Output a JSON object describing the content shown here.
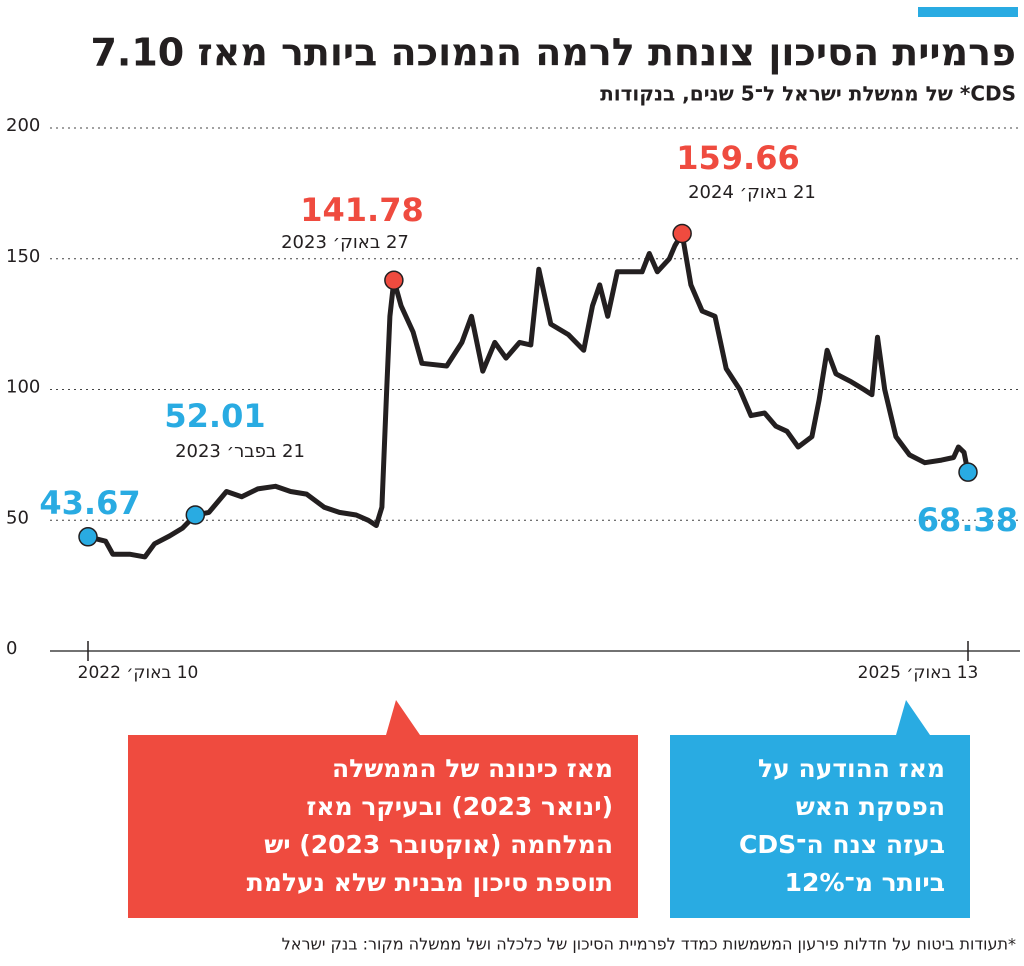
{
  "title": "פרמיית הסיכון צונחת לרמה הנמוכה ביותר מאז 7.10",
  "subtitle": "CDS* של ממשלת ישראל ל־5 שנים, בנקודות",
  "chart_data": {
    "type": "line",
    "ylim": [
      0,
      200
    ],
    "yticks": [
      0,
      50,
      100,
      150,
      200
    ],
    "xlim": [
      "2022-10-10",
      "2025-10-13"
    ],
    "xticks": [
      {
        "value": "2022-10-10",
        "label": "10 באוק׳ 2022"
      },
      {
        "value": "2025-10-13",
        "label": "13 באוק׳ 2025"
      }
    ],
    "grid": true,
    "series": [
      {
        "color": "#231f20",
        "x": [
          "2022-10-10",
          "2022-11-01",
          "2022-11-10",
          "2022-12-01",
          "2022-12-20",
          "2023-01-01",
          "2023-01-20",
          "2023-02-05",
          "2023-02-21",
          "2023-03-10",
          "2023-04-01",
          "2023-04-20",
          "2023-05-10",
          "2023-06-01",
          "2023-06-20",
          "2023-07-10",
          "2023-08-01",
          "2023-08-20",
          "2023-09-10",
          "2023-09-25",
          "2023-10-05",
          "2023-10-12",
          "2023-10-18",
          "2023-10-22",
          "2023-10-27",
          "2023-11-05",
          "2023-11-20",
          "2023-12-01",
          "2024-01-01",
          "2024-01-20",
          "2024-02-01",
          "2024-02-15",
          "2024-03-01",
          "2024-03-15",
          "2024-04-01",
          "2024-04-15",
          "2024-04-25",
          "2024-05-10",
          "2024-06-01",
          "2024-06-20",
          "2024-07-01",
          "2024-07-10",
          "2024-07-20",
          "2024-08-01",
          "2024-09-01",
          "2024-09-10",
          "2024-09-20",
          "2024-10-05",
          "2024-10-12",
          "2024-10-21",
          "2024-11-01",
          "2024-11-15",
          "2024-12-01",
          "2024-12-15",
          "2025-01-01",
          "2025-01-15",
          "2025-02-01",
          "2025-02-15",
          "2025-03-01",
          "2025-03-15",
          "2025-04-01",
          "2025-04-10",
          "2025-04-20",
          "2025-05-01",
          "2025-05-20",
          "2025-06-05",
          "2025-06-15",
          "2025-06-22",
          "2025-07-01",
          "2025-07-15",
          "2025-08-01",
          "2025-08-20",
          "2025-09-10",
          "2025-09-25",
          "2025-10-01",
          "2025-10-08",
          "2025-10-13"
        ],
        "values": [
          43.67,
          42,
          37,
          37,
          36,
          41,
          44,
          47,
          52.01,
          53,
          61,
          59,
          62,
          63,
          61,
          60,
          55,
          53,
          52,
          50,
          48,
          55,
          100,
          128,
          141.78,
          132,
          122,
          110,
          109,
          118,
          128,
          107,
          118,
          112,
          118,
          117,
          146,
          125,
          121,
          115,
          132,
          140,
          128,
          145,
          145,
          152,
          145,
          150,
          155,
          159.66,
          140,
          130,
          128,
          108,
          100,
          90,
          91,
          86,
          84,
          78,
          82,
          96,
          115,
          106,
          103,
          100,
          98,
          120,
          100,
          82,
          75,
          72,
          73,
          74,
          78,
          76,
          68.38
        ]
      }
    ],
    "annotations": [
      {
        "x": "2022-10-10",
        "y": 43.67,
        "color": "#29abe2"
      },
      {
        "x": "2023-02-21",
        "y": 52.01,
        "date": "21 בפבר׳ 2023",
        "color": "#29abe2"
      },
      {
        "x": "2023-10-27",
        "y": 141.78,
        "date": "27 באוק׳ 2023",
        "color": "#ef4b3f"
      },
      {
        "x": "2024-10-21",
        "y": 159.66,
        "date": "21 באוק׳ 2024",
        "color": "#ef4b3f"
      },
      {
        "x": "2025-10-13",
        "y": 68.38,
        "color": "#29abe2"
      }
    ]
  },
  "callouts": [
    {
      "color": "#ef4b3f",
      "lines": [
        "מאז כינונה של הממשלה",
        "(ינואר 2023) ובעיקר מאז",
        "המלחמה (אוקטובר 2023) יש",
        "תוספת סיכון מבנית שלא נעלמת"
      ]
    },
    {
      "color": "#29abe2",
      "lines": [
        "מאז ההודעה על",
        "הפסקת האש",
        "בעזה צנח ה־CDS",
        "ביותר מ־12%"
      ]
    }
  ],
  "footnote": "*תעודות ביטוח על חדלות פירעון המשמשות כמדד לפרמיית הסיכון של כלכלה ושל ממשלה מקור: בנק ישראל"
}
